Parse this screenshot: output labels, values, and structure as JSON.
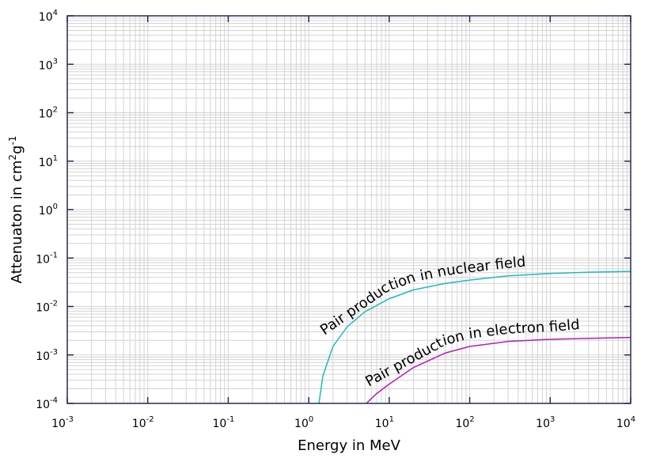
{
  "chart_data": {
    "type": "line",
    "xlabel": "Energy in MeV",
    "ylabel": "Attenuaton in cm²g⁻¹",
    "ylabel_parts": {
      "base": "Attenuaton in cm",
      "sup1": "2",
      "mid": "g",
      "sup2": "-1"
    },
    "x_scale": "log",
    "y_scale": "log",
    "xlim": [
      0.001,
      10000
    ],
    "ylim": [
      0.0001,
      10000
    ],
    "grid": true,
    "x_ticks": [
      {
        "base": "10",
        "exp": "-3"
      },
      {
        "base": "10",
        "exp": "-2"
      },
      {
        "base": "10",
        "exp": "-1"
      },
      {
        "base": "10",
        "exp": "0"
      },
      {
        "base": "10",
        "exp": "1"
      },
      {
        "base": "10",
        "exp": "2"
      },
      {
        "base": "10",
        "exp": "3"
      },
      {
        "base": "10",
        "exp": "4"
      }
    ],
    "y_ticks": [
      {
        "base": "10",
        "exp": "-4"
      },
      {
        "base": "10",
        "exp": "-3"
      },
      {
        "base": "10",
        "exp": "-2"
      },
      {
        "base": "10",
        "exp": "-1"
      },
      {
        "base": "10",
        "exp": "0"
      },
      {
        "base": "10",
        "exp": "1"
      },
      {
        "base": "10",
        "exp": "2"
      },
      {
        "base": "10",
        "exp": "3"
      },
      {
        "base": "10",
        "exp": "4"
      }
    ],
    "series": [
      {
        "name": "Pair production in nuclear field",
        "color": "#1bbcbc",
        "x": [
          1.34,
          1.5,
          2.0,
          3.0,
          5.0,
          10,
          20,
          50,
          100,
          300,
          1000,
          3000,
          10000
        ],
        "y": [
          0.0001,
          0.00037,
          0.0015,
          0.0038,
          0.0078,
          0.0145,
          0.022,
          0.03,
          0.035,
          0.043,
          0.048,
          0.051,
          0.053
        ]
      },
      {
        "name": "Pair production in electron field",
        "color": "#b31bbf",
        "x": [
          5.2,
          7,
          10,
          20,
          50,
          100,
          300,
          1000,
          3000,
          10000
        ],
        "y": [
          0.0001,
          0.00016,
          0.00025,
          0.00055,
          0.0011,
          0.0015,
          0.0019,
          0.0021,
          0.0022,
          0.0023
        ]
      }
    ]
  }
}
